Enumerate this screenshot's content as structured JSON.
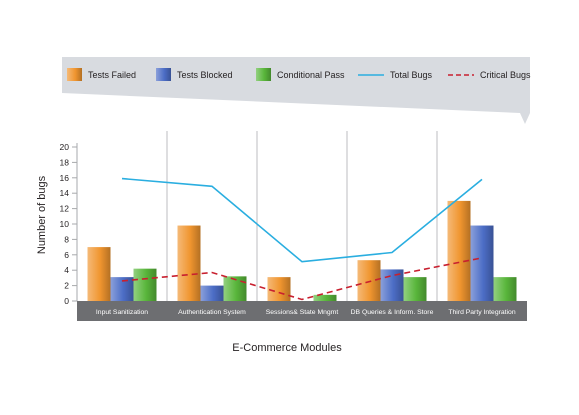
{
  "chart_data": {
    "type": "bar",
    "xlabel": "E-Commerce Modules",
    "ylabel": "Number of bugs",
    "ylim": [
      0,
      20
    ],
    "yticks": [
      0,
      2,
      4,
      6,
      8,
      10,
      12,
      14,
      16,
      18,
      20
    ],
    "categories": [
      "Input Sanitization",
      "Authentication System",
      "Sessions& State Mngmt",
      "DB Queries & Inform. Store",
      "Third Party Integration"
    ],
    "bar_series": [
      {
        "name": "Tests Failed",
        "values": [
          7,
          9.8,
          3.1,
          5.3,
          13
        ],
        "color": "#F0952F"
      },
      {
        "name": "Tests Blocked",
        "values": [
          3.1,
          2,
          0,
          4.1,
          9.8
        ],
        "color": "#4C6DC6"
      },
      {
        "name": "Conditional Pass",
        "values": [
          4.2,
          3.2,
          0.8,
          3.1,
          3.1
        ],
        "color": "#59B63B"
      }
    ],
    "line_series": [
      {
        "name": "Total Bugs",
        "values": [
          15.9,
          14.9,
          5.1,
          6.3,
          15.8
        ],
        "color": "#2AAEE0",
        "style": "solid"
      },
      {
        "name": "Critical Bugs",
        "values": [
          2.6,
          3.7,
          0.2,
          3.3,
          5.6
        ],
        "color": "#C8202F",
        "style": "dashed"
      }
    ],
    "legend_position": "top",
    "grid": "vertical category dividers"
  }
}
